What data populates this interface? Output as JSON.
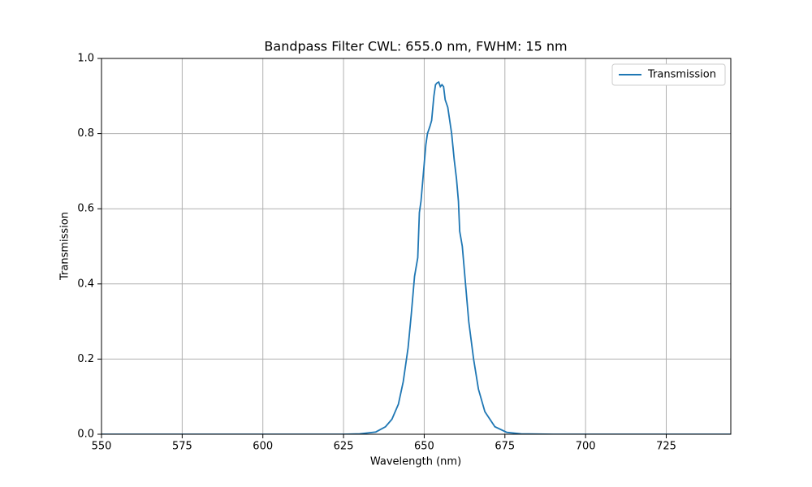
{
  "chart_data": {
    "type": "line",
    "title": "Bandpass Filter CWL: 655.0 nm, FWHM: 15 nm",
    "x_label": "Wavelength (nm)",
    "y_label": "Transmission",
    "x": [
      550,
      625,
      630,
      635,
      638,
      640,
      642,
      643.5,
      645,
      646,
      647,
      648,
      648.5,
      649,
      650,
      650.5,
      651,
      651.8,
      652.3,
      653,
      653.5,
      654,
      654.5,
      655,
      655.5,
      656,
      656.5,
      657.3,
      658.5,
      659.3,
      660,
      660.6,
      661,
      661.8,
      662.6,
      663.8,
      665.3,
      666.8,
      668.8,
      671.9,
      675.6,
      680,
      690,
      745
    ],
    "series": [
      {
        "name": "Transmission",
        "color": "#1f77b4",
        "values": [
          0,
          0,
          0.001,
          0.006,
          0.02,
          0.04,
          0.08,
          0.14,
          0.23,
          0.32,
          0.42,
          0.47,
          0.59,
          0.62,
          0.72,
          0.77,
          0.8,
          0.82,
          0.835,
          0.9,
          0.93,
          0.935,
          0.937,
          0.925,
          0.93,
          0.925,
          0.89,
          0.87,
          0.8,
          0.73,
          0.68,
          0.62,
          0.54,
          0.5,
          0.42,
          0.3,
          0.2,
          0.12,
          0.06,
          0.02,
          0.005,
          0.001,
          0,
          0
        ]
      }
    ],
    "xlim": [
      550,
      745
    ],
    "ylim": [
      0,
      1
    ],
    "xticks": [
      550,
      575,
      600,
      625,
      650,
      675,
      700,
      725
    ],
    "yticks": [
      {
        "value": 0,
        "label": "0.0"
      },
      {
        "value": 0.2,
        "label": "0.2"
      },
      {
        "value": 0.4,
        "label": "0.4"
      },
      {
        "value": 0.6,
        "label": "0.6"
      },
      {
        "value": 0.8,
        "label": "0.8"
      },
      {
        "value": 1,
        "label": "1.0"
      }
    ],
    "grid": true,
    "legend": "upper right"
  }
}
